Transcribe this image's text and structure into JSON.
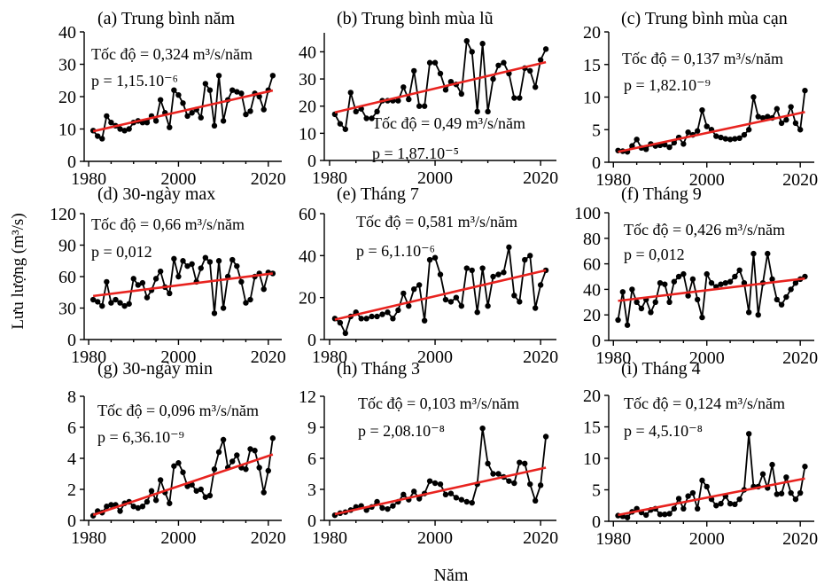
{
  "figure": {
    "ylabel": "Lưu lượng (m³/s)",
    "xlabel": "Năm"
  },
  "chart_data": [
    {
      "type": "line",
      "title": "(a) Trung bình năm",
      "rate_label": "Tốc độ = 0,324 m³/s/năm",
      "p_label": "p = 1,15.10⁻⁶",
      "x_ticks": [
        "1980",
        "2000",
        "2020"
      ],
      "y_ticks": [
        "0",
        "10",
        "20",
        "30",
        "40"
      ],
      "xlim": [
        1979,
        2023
      ],
      "ylim": [
        0,
        40
      ],
      "x": [
        1981,
        1982,
        1983,
        1984,
        1985,
        1986,
        1987,
        1988,
        1989,
        1990,
        1991,
        1992,
        1993,
        1994,
        1995,
        1996,
        1997,
        1998,
        1999,
        2000,
        2001,
        2002,
        2003,
        2004,
        2005,
        2006,
        2007,
        2008,
        2009,
        2010,
        2011,
        2012,
        2013,
        2014,
        2015,
        2016,
        2017,
        2018,
        2019,
        2020,
        2021
      ],
      "series": [
        {
          "values": [
            9.5,
            7.8,
            7,
            14,
            12,
            11,
            10,
            9.5,
            10,
            12,
            12.5,
            12,
            12,
            14,
            12.5,
            19,
            15,
            10.5,
            22,
            20.5,
            18,
            14,
            15,
            16,
            13.5,
            24,
            22,
            11,
            26.5,
            12.5,
            19,
            22,
            21.5,
            21,
            14.5,
            15.5,
            21,
            20,
            16,
            22,
            26.5
          ]
        }
      ],
      "trend": [
        9.3,
        21.9
      ]
    },
    {
      "type": "line",
      "title": "(b) Trung bình mùa lũ",
      "rate_label": "Tốc độ = 0,49 m³/s/năm",
      "p_label": "p = 1,87.10⁻⁵",
      "x_ticks": [
        "1980",
        "2000",
        "2020"
      ],
      "y_ticks": [
        "0",
        "10",
        "20",
        "30",
        "40"
      ],
      "xlim": [
        1979,
        2023
      ],
      "ylim": [
        0,
        47
      ],
      "x": [
        1981,
        1982,
        1983,
        1984,
        1985,
        1986,
        1987,
        1988,
        1989,
        1990,
        1991,
        1992,
        1993,
        1994,
        1995,
        1996,
        1997,
        1998,
        1999,
        2000,
        2001,
        2002,
        2003,
        2004,
        2005,
        2006,
        2007,
        2008,
        2009,
        2010,
        2011,
        2012,
        2013,
        2014,
        2015,
        2016,
        2017,
        2018,
        2019,
        2020,
        2021
      ],
      "series": [
        {
          "values": [
            17,
            13.5,
            11.5,
            25,
            18,
            19,
            15.5,
            15.5,
            18,
            22,
            22,
            22,
            22,
            27,
            22.5,
            33,
            20,
            20,
            36,
            36,
            32,
            26,
            29,
            28,
            24.5,
            44,
            40,
            18,
            43,
            18,
            30,
            35,
            36,
            32,
            23,
            23,
            34,
            33,
            27,
            37,
            41
          ]
        }
      ],
      "trend": [
        17.7,
        36.2
      ]
    },
    {
      "type": "line",
      "title": "(c) Trung bình mùa cạn",
      "rate_label": "Tốc độ = 0,137 m³/s/năm",
      "p_label": "p = 1,82.10⁻⁹",
      "x_ticks": [
        "1980",
        "2000",
        "2020"
      ],
      "y_ticks": [
        "0",
        "5",
        "10",
        "15",
        "20"
      ],
      "xlim": [
        1979,
        2023
      ],
      "ylim": [
        0,
        20
      ],
      "x": [
        1981,
        1982,
        1983,
        1984,
        1985,
        1986,
        1987,
        1988,
        1989,
        1990,
        1991,
        1992,
        1993,
        1994,
        1995,
        1996,
        1997,
        1998,
        1999,
        2000,
        2001,
        2002,
        2003,
        2004,
        2005,
        2006,
        2007,
        2008,
        2009,
        2010,
        2011,
        2012,
        2013,
        2014,
        2015,
        2016,
        2017,
        2018,
        2019,
        2020,
        2021
      ],
      "series": [
        {
          "values": [
            1.8,
            1.7,
            1.6,
            2.5,
            3.5,
            2.2,
            2,
            2.8,
            2.5,
            2.6,
            2.7,
            2.3,
            3,
            3.8,
            2.8,
            4.6,
            4.2,
            4.8,
            8,
            5.5,
            5,
            4,
            3.8,
            3.6,
            3.5,
            3.6,
            3.7,
            4.2,
            5,
            10,
            7,
            6.8,
            7,
            6.8,
            8.2,
            6,
            6.5,
            8.5,
            6,
            5,
            11
          ]
        }
      ],
      "trend": [
        1.6,
        7.7
      ]
    },
    {
      "type": "line",
      "title": "(d) 30-ngày max",
      "rate_label": "Tốc độ = 0,66 m³/s/năm",
      "p_label": "p = 0,012",
      "x_ticks": [
        "1980",
        "2000",
        "2020"
      ],
      "y_ticks": [
        "0",
        "30",
        "60",
        "90",
        "120"
      ],
      "xlim": [
        1979,
        2023
      ],
      "ylim": [
        0,
        120
      ],
      "x": [
        1981,
        1982,
        1983,
        1984,
        1985,
        1986,
        1987,
        1988,
        1989,
        1990,
        1991,
        1992,
        1993,
        1994,
        1995,
        1996,
        1997,
        1998,
        1999,
        2000,
        2001,
        2002,
        2003,
        2004,
        2005,
        2006,
        2007,
        2008,
        2009,
        2010,
        2011,
        2012,
        2013,
        2014,
        2015,
        2016,
        2017,
        2018,
        2019,
        2020,
        2021
      ],
      "series": [
        {
          "values": [
            38,
            36,
            32,
            55,
            35,
            38,
            35,
            32,
            34,
            58,
            52,
            54,
            40,
            47,
            58,
            65,
            50,
            44,
            77,
            60,
            75,
            70,
            72,
            55,
            68,
            78,
            74,
            25,
            75,
            30,
            60,
            76,
            70,
            55,
            35,
            38,
            60,
            63,
            48,
            64,
            63
          ]
        }
      ],
      "trend": [
        41.5,
        63
      ]
    },
    {
      "type": "line",
      "title": "(e) Tháng 7",
      "rate_label": "Tốc độ = 0,581 m³/s/năm",
      "p_label": "p = 6,1.10⁻⁶",
      "x_ticks": [
        "1980",
        "2000",
        "2020"
      ],
      "y_ticks": [
        "0",
        "20",
        "40",
        "60"
      ],
      "xlim": [
        1979,
        2023
      ],
      "ylim": [
        0,
        60
      ],
      "x": [
        1981,
        1982,
        1983,
        1984,
        1985,
        1986,
        1987,
        1988,
        1989,
        1990,
        1991,
        1992,
        1993,
        1994,
        1995,
        1996,
        1997,
        1998,
        1999,
        2000,
        2001,
        2002,
        2003,
        2004,
        2005,
        2006,
        2007,
        2008,
        2009,
        2010,
        2011,
        2012,
        2013,
        2014,
        2015,
        2016,
        2017,
        2018,
        2019,
        2020,
        2021
      ],
      "series": [
        {
          "values": [
            10,
            8,
            3,
            11,
            13,
            10,
            10,
            11,
            11,
            12,
            13,
            10,
            14,
            22,
            16,
            24,
            26,
            9,
            38,
            39,
            31,
            19,
            18,
            20,
            16,
            34,
            33,
            13,
            34,
            16,
            30,
            31,
            32,
            44,
            21,
            18,
            38,
            40,
            15,
            26,
            33
          ]
        }
      ],
      "trend": [
        9.5,
        33
      ]
    },
    {
      "type": "line",
      "title": "(f) Tháng 9",
      "rate_label": "Tốc độ = 0,426 m³/s/năm",
      "p_label": "p = 0,012",
      "x_ticks": [
        "1980",
        "2000",
        "2020"
      ],
      "y_ticks": [
        "0",
        "20",
        "40",
        "60",
        "80",
        "100"
      ],
      "xlim": [
        1979,
        2023
      ],
      "ylim": [
        0,
        100
      ],
      "x": [
        1981,
        1982,
        1983,
        1984,
        1985,
        1986,
        1987,
        1988,
        1989,
        1990,
        1991,
        1992,
        1993,
        1994,
        1995,
        1996,
        1997,
        1998,
        1999,
        2000,
        2001,
        2002,
        2003,
        2004,
        2005,
        2006,
        2007,
        2008,
        2009,
        2010,
        2011,
        2012,
        2013,
        2014,
        2015,
        2016,
        2017,
        2018,
        2019,
        2020,
        2021
      ],
      "series": [
        {
          "values": [
            16,
            38,
            12,
            40,
            30,
            25,
            32,
            22,
            30,
            45,
            44,
            30,
            46,
            50,
            52,
            35,
            48,
            32,
            18,
            52,
            45,
            42,
            44,
            45,
            46,
            50,
            55,
            45,
            22,
            68,
            20,
            45,
            68,
            48,
            32,
            28,
            34,
            40,
            45,
            48,
            50
          ]
        }
      ],
      "trend": [
        31,
        48.5
      ]
    },
    {
      "type": "line",
      "title": "(g) 30-ngày min",
      "rate_label": "Tốc độ = 0,096 m³/s/năm",
      "p_label": "p = 6,36.10⁻⁹",
      "x_ticks": [
        "1980",
        "2000",
        "2020"
      ],
      "y_ticks": [
        "0",
        "2",
        "4",
        "6",
        "8"
      ],
      "xlim": [
        1979,
        2023
      ],
      "ylim": [
        0,
        8
      ],
      "x": [
        1981,
        1982,
        1983,
        1984,
        1985,
        1986,
        1987,
        1988,
        1989,
        1990,
        1991,
        1992,
        1993,
        1994,
        1995,
        1996,
        1997,
        1998,
        1999,
        2000,
        2001,
        2002,
        2003,
        2004,
        2005,
        2006,
        2007,
        2008,
        2009,
        2010,
        2011,
        2012,
        2013,
        2014,
        2015,
        2016,
        2017,
        2018,
        2019,
        2020,
        2021
      ],
      "series": [
        {
          "values": [
            0.3,
            0.6,
            0.5,
            0.9,
            1.0,
            1.0,
            0.6,
            1.1,
            1.2,
            0.9,
            0.8,
            0.9,
            1.2,
            1.9,
            1.3,
            2.6,
            1.8,
            1.1,
            3.5,
            3.7,
            3.1,
            2.2,
            2.3,
            1.9,
            2.0,
            1.5,
            1.6,
            3.3,
            4.4,
            5.2,
            3.4,
            3.8,
            4.2,
            3.4,
            3.3,
            4.6,
            4.5,
            3.4,
            1.8,
            3.2,
            5.3
          ]
        }
      ],
      "trend": [
        0.35,
        4.25
      ]
    },
    {
      "type": "line",
      "title": "(h) Tháng 3",
      "rate_label": "Tốc độ = 0,103 m³/s/năm",
      "p_label": "p = 2,08.10⁻⁸",
      "x_ticks": [
        "1980",
        "2000",
        "2020"
      ],
      "y_ticks": [
        "0",
        "3",
        "6",
        "9",
        "12"
      ],
      "xlim": [
        1979,
        2023
      ],
      "ylim": [
        0,
        12
      ],
      "x": [
        1981,
        1982,
        1983,
        1984,
        1985,
        1986,
        1987,
        1988,
        1989,
        1990,
        1991,
        1992,
        1993,
        1994,
        1995,
        1996,
        1997,
        1998,
        1999,
        2000,
        2001,
        2002,
        2003,
        2004,
        2005,
        2006,
        2007,
        2008,
        2009,
        2010,
        2011,
        2012,
        2013,
        2014,
        2015,
        2016,
        2017,
        2018,
        2019,
        2020,
        2021
      ],
      "series": [
        {
          "values": [
            0.5,
            0.7,
            0.8,
            1.0,
            1.3,
            1.4,
            1.0,
            1.3,
            1.8,
            1.2,
            1.1,
            1.4,
            1.8,
            2.5,
            2.0,
            2.8,
            2.1,
            2.6,
            3.8,
            3.6,
            3.5,
            2.5,
            2.6,
            2.2,
            2.0,
            1.8,
            1.7,
            3.5,
            8.9,
            5.5,
            4.5,
            4.5,
            4.2,
            3.8,
            3.6,
            5.6,
            5.5,
            3.5,
            1.9,
            3.4,
            8.1
          ]
        }
      ],
      "trend": [
        0.6,
        5.1
      ]
    },
    {
      "type": "line",
      "title": "(i) Tháng 4",
      "rate_label": "Tốc độ = 0,124 m³/s/năm",
      "p_label": "p = 4,5.10⁻⁸",
      "x_ticks": [
        "1980",
        "2000",
        "2020"
      ],
      "y_ticks": [
        "0",
        "5",
        "10",
        "15",
        "20"
      ],
      "xlim": [
        1979,
        2023
      ],
      "ylim": [
        0,
        20
      ],
      "x": [
        1981,
        1982,
        1983,
        1984,
        1985,
        1986,
        1987,
        1988,
        1989,
        1990,
        1991,
        1992,
        1993,
        1994,
        1995,
        1996,
        1997,
        1998,
        1999,
        2000,
        2001,
        2002,
        2003,
        2004,
        2005,
        2006,
        2007,
        2008,
        2009,
        2010,
        2011,
        2012,
        2013,
        2014,
        2015,
        2016,
        2017,
        2018,
        2019,
        2020,
        2021
      ],
      "series": [
        {
          "values": [
            0.9,
            0.8,
            0.6,
            1.5,
            2.0,
            1.4,
            1.0,
            1.8,
            2.0,
            1.1,
            1.1,
            1.2,
            2.0,
            3.6,
            2.0,
            4.0,
            4.5,
            2.0,
            6.5,
            5.5,
            3.5,
            2.5,
            2.8,
            4.0,
            2.8,
            2.7,
            3.5,
            5.0,
            13.9,
            5.5,
            5.5,
            7.5,
            5.3,
            9.0,
            4.3,
            4.4,
            7.0,
            4.5,
            3.5,
            4.5,
            8.7
          ]
        }
      ],
      "trend": [
        1.0,
        6.8
      ]
    }
  ]
}
